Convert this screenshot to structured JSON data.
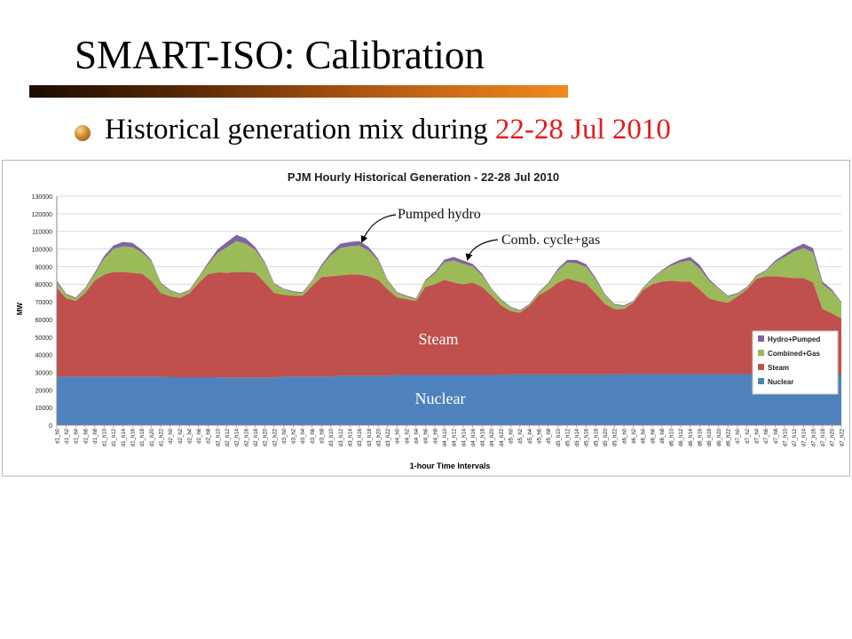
{
  "slide": {
    "title": "SMART-ISO: Calibration",
    "bullet_prefix": "Historical generation mix during ",
    "bullet_highlight": "22-28 Jul 2010"
  },
  "colors": {
    "nuclear": "#4f81bd",
    "steam": "#c0504d",
    "combined_gas": "#9bbb59",
    "hydro_pumped": "#8064a2",
    "highlight_text": "#e31c1c"
  },
  "annotations": {
    "pumped_hydro": "Pumped hydro",
    "comb_cycle": "Comb. cycle+gas",
    "steam": "Steam",
    "nuclear": "Nuclear"
  },
  "chart_data": {
    "type": "area",
    "stacked": true,
    "title": "PJM Hourly Historical Generation - 22-28 Jul 2010",
    "xlabel": "1-hour Time Intervals",
    "ylabel": "MW",
    "ylim": [
      0,
      130000
    ],
    "yticks": [
      0,
      10000,
      20000,
      30000,
      40000,
      50000,
      60000,
      70000,
      80000,
      90000,
      100000,
      110000,
      120000,
      130000
    ],
    "grid": true,
    "legend_position": "bottom-right",
    "x_tick_labels": [
      "d1_h0",
      "d1_h2",
      "d1_h4",
      "d1_h6",
      "d1_h8",
      "d1_h10",
      "d1_h12",
      "d1_h14",
      "d1_h16",
      "d1_h18",
      "d1_h20",
      "d1_h22",
      "d2_h0",
      "d2_h2",
      "d2_h4",
      "d2_h6",
      "d2_h8",
      "d2_h10",
      "d2_h12",
      "d2_h14",
      "d2_h16",
      "d2_h18",
      "d2_h20",
      "d2_h22",
      "d3_h0",
      "d3_h2",
      "d3_h4",
      "d3_h6",
      "d3_h8",
      "d3_h10",
      "d3_h12",
      "d3_h14",
      "d3_h16",
      "d3_h18",
      "d3_h20",
      "d3_h22",
      "d4_h0",
      "d4_h2",
      "d4_h4",
      "d4_h6",
      "d4_h8",
      "d4_h10",
      "d4_h12",
      "d4_h14",
      "d4_h16",
      "d4_h18",
      "d4_h20",
      "d4_h22",
      "d5_h0",
      "d5_h2",
      "d5_h4",
      "d5_h6",
      "d5_h8",
      "d5_h10",
      "d5_h12",
      "d5_h14",
      "d5_h16",
      "d5_h18",
      "d5_h20",
      "d5_h22",
      "d6_h0",
      "d6_h2",
      "d6_h4",
      "d6_h6",
      "d6_h8",
      "d6_h10",
      "d6_h12",
      "d6_h14",
      "d6_h16",
      "d6_h18",
      "d6_h20",
      "d6_h22",
      "d7_h0",
      "d7_h2",
      "d7_h4",
      "d7_h6",
      "d7_h8",
      "d7_h10",
      "d7_h12",
      "d7_h14",
      "d7_h16",
      "d7_h18",
      "d7_h20",
      "d7_h22"
    ],
    "series": [
      {
        "name": "Nuclear",
        "values": [
          27500,
          27500,
          27500,
          27500,
          27500,
          27500,
          27500,
          27500,
          27500,
          27500,
          27500,
          27500,
          27200,
          27200,
          27200,
          27200,
          27200,
          27200,
          27000,
          27000,
          27000,
          27000,
          27000,
          27000,
          27500,
          27500,
          27500,
          27500,
          27500,
          27500,
          28000,
          28000,
          28000,
          28000,
          28000,
          28000,
          28500,
          28500,
          28500,
          28500,
          28500,
          28500,
          28500,
          28500,
          28500,
          28500,
          28500,
          28500,
          28800,
          28800,
          28800,
          28800,
          28800,
          28800,
          28800,
          28800,
          28800,
          28800,
          28800,
          28800,
          29000,
          29000,
          29000,
          29000,
          29000,
          29000,
          29000,
          29000,
          29000,
          29000,
          29000,
          29000,
          29000,
          29000,
          29000,
          29000,
          29000,
          29000,
          29000,
          29000,
          29000,
          29000,
          29000,
          29000
        ]
      },
      {
        "name": "Steam",
        "values": [
          50500,
          44500,
          43000,
          47500,
          54500,
          58000,
          59500,
          59500,
          59000,
          58500,
          54500,
          47500,
          46000,
          45000,
          47500,
          53500,
          58500,
          59500,
          59500,
          60000,
          60000,
          59500,
          54000,
          48000,
          46500,
          46000,
          46000,
          51500,
          56500,
          57000,
          57000,
          57500,
          57500,
          56500,
          54500,
          49000,
          44000,
          43000,
          42000,
          50000,
          51500,
          54000,
          52500,
          51500,
          52500,
          50000,
          45000,
          39500,
          36000,
          35000,
          39000,
          45000,
          48000,
          52000,
          54500,
          53000,
          51500,
          46000,
          40000,
          37000,
          37000,
          40500,
          47500,
          51000,
          52500,
          53000,
          52500,
          52500,
          48000,
          43000,
          41500,
          40500,
          44000,
          48000,
          54000,
          55500,
          55500,
          55000,
          54500,
          54500,
          52000,
          37000,
          34500,
          31500
        ]
      },
      {
        "name": "Combined+Gas",
        "values": [
          3000,
          2000,
          1500,
          2500,
          3500,
          9000,
          13000,
          14500,
          14500,
          12000,
          11000,
          5500,
          3000,
          2000,
          1500,
          3000,
          5500,
          11000,
          14500,
          17500,
          16000,
          13000,
          11000,
          5000,
          3000,
          2000,
          1500,
          2500,
          6000,
          12000,
          15500,
          16000,
          16500,
          14500,
          11000,
          5000,
          2500,
          1500,
          1000,
          3500,
          6000,
          10000,
          12500,
          11500,
          9000,
          6500,
          3500,
          3000,
          2000,
          1000,
          500,
          1500,
          3500,
          7000,
          9000,
          10000,
          9500,
          8000,
          5000,
          2500,
          1500,
          500,
          1000,
          3000,
          6000,
          8500,
          11000,
          12000,
          12000,
          10000,
          7000,
          3500,
          1500,
          1000,
          1500,
          3000,
          8000,
          11500,
          15000,
          17000,
          17000,
          14000,
          12500,
          9000
        ]
      },
      {
        "name": "Hydro+Pumped",
        "values": [
          1000,
          500,
          500,
          500,
          1000,
          1500,
          2000,
          2500,
          2500,
          1500,
          800,
          500,
          500,
          500,
          500,
          500,
          1000,
          2000,
          3000,
          3500,
          3000,
          1500,
          800,
          500,
          500,
          500,
          500,
          500,
          1000,
          1500,
          2500,
          2500,
          2500,
          2000,
          1000,
          500,
          500,
          500,
          500,
          500,
          1000,
          1500,
          2000,
          2000,
          1500,
          1000,
          500,
          500,
          500,
          500,
          500,
          500,
          500,
          1000,
          1500,
          2000,
          1500,
          1000,
          500,
          500,
          500,
          500,
          500,
          500,
          500,
          1000,
          1500,
          2000,
          2000,
          1000,
          500,
          500,
          500,
          500,
          500,
          500,
          1000,
          1500,
          2000,
          2500,
          2500,
          1500,
          1000,
          500
        ]
      }
    ]
  }
}
